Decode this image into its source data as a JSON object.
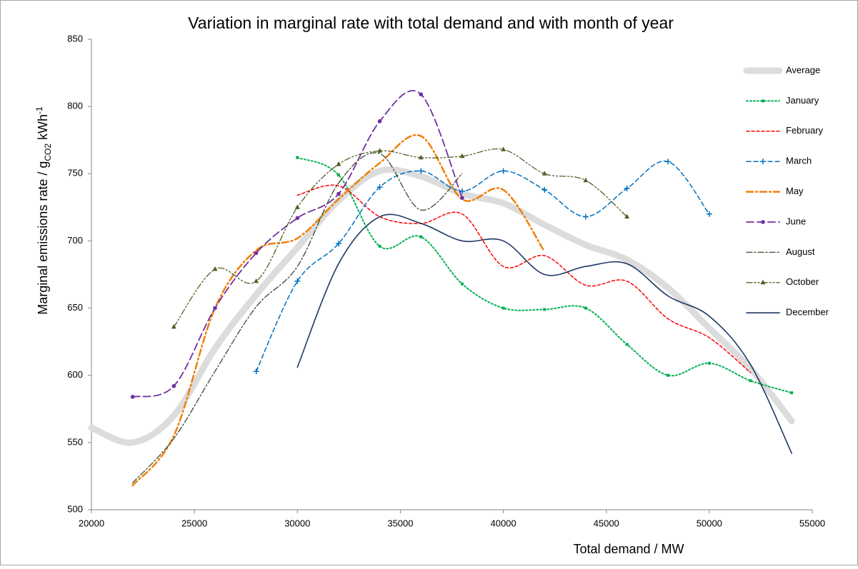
{
  "chart_data": {
    "type": "line",
    "title": "Variation in marginal rate with total demand and with month of year",
    "x_label": "Total demand / MW",
    "y_label": {
      "text": "Marginal emissions rate / g",
      "subscript": "CO2",
      "unit": " kWh",
      "superscript": "-1"
    },
    "x": [
      20000,
      22000,
      24000,
      26000,
      28000,
      30000,
      32000,
      34000,
      36000,
      38000,
      40000,
      42000,
      44000,
      46000,
      48000,
      50000,
      52000,
      54000
    ],
    "xlim": [
      20000,
      55000
    ],
    "xticks": [
      20000,
      25000,
      30000,
      35000,
      40000,
      45000,
      50000,
      55000
    ],
    "ylim": [
      500,
      850
    ],
    "yticks": [
      500,
      550,
      600,
      650,
      700,
      750,
      800,
      850
    ],
    "smooth": true,
    "legend": "right",
    "series": [
      {
        "name": "Average",
        "color": "#dcdcdc",
        "width": 9,
        "dash": "none",
        "marker": "none",
        "values": [
          561,
          550,
          570,
          620,
          660,
          695,
          730,
          752,
          748,
          735,
          728,
          712,
          697,
          686,
          665,
          635,
          605,
          566
        ]
      },
      {
        "name": "January",
        "color": "#00b050",
        "width": 2,
        "dash": "2 3",
        "marker": "square",
        "values": [
          null,
          null,
          null,
          null,
          null,
          762,
          749,
          696,
          703,
          668,
          650,
          649,
          650,
          623,
          600,
          609,
          596,
          587
        ]
      },
      {
        "name": "February",
        "color": "#ff0000",
        "width": 1.5,
        "dash": "4 3",
        "marker": "none",
        "values": [
          null,
          null,
          null,
          null,
          null,
          734,
          741,
          718,
          713,
          720,
          681,
          689,
          667,
          670,
          642,
          628,
          602,
          null
        ]
      },
      {
        "name": "March",
        "color": "#0070c0",
        "width": 1.5,
        "dash": "6 4",
        "marker": "plus",
        "values": [
          null,
          null,
          null,
          null,
          603,
          670,
          698,
          740,
          752,
          737,
          752,
          738,
          718,
          739,
          759,
          720,
          null,
          null
        ]
      },
      {
        "name": "May",
        "color": "#f07f09",
        "width": 2.5,
        "dash": "9 4 2 4",
        "marker": "none",
        "values": [
          null,
          518,
          555,
          650,
          693,
          702,
          731,
          758,
          778,
          731,
          738,
          692,
          null,
          null,
          null,
          null,
          null,
          null
        ]
      },
      {
        "name": "June",
        "color": "#7030a0",
        "width": 1.8,
        "dash": "10 5",
        "marker": "circle",
        "values": [
          null,
          584,
          592,
          650,
          691,
          717,
          735,
          789,
          809,
          732,
          null,
          null,
          null,
          null,
          null,
          null,
          null,
          null
        ]
      },
      {
        "name": "August",
        "color": "#3b4a2a",
        "width": 1.3,
        "dash": "8 3 2 3",
        "marker": "none",
        "values": [
          null,
          520,
          553,
          603,
          651,
          681,
          743,
          765,
          723,
          750,
          null,
          null,
          null,
          null,
          null,
          null,
          null,
          null
        ]
      },
      {
        "name": "October",
        "color": "#4f6228",
        "width": 1.3,
        "dash": "8 3 2 3 2 3",
        "marker": "triangle",
        "values": [
          null,
          null,
          636,
          679,
          670,
          725,
          757,
          767,
          762,
          763,
          768,
          750,
          745,
          718,
          null,
          null,
          null,
          null
        ]
      },
      {
        "name": "December",
        "color": "#1f3864",
        "width": 1.6,
        "dash": "none",
        "marker": "none",
        "values": [
          null,
          null,
          null,
          null,
          null,
          606,
          683,
          718,
          713,
          700,
          700,
          675,
          681,
          683,
          659,
          644,
          608,
          542
        ]
      }
    ]
  }
}
